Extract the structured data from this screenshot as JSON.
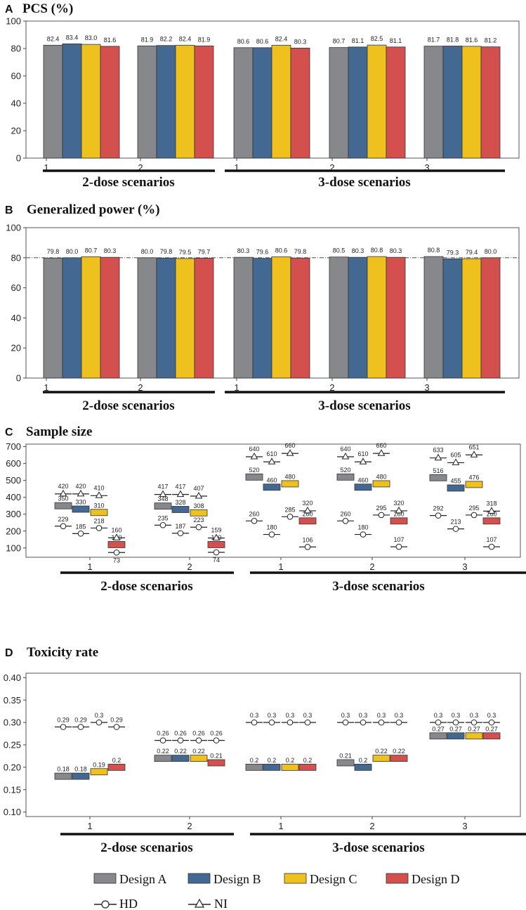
{
  "colors": {
    "A": "#87888c",
    "B": "#436891",
    "C": "#eec11f",
    "D": "#d4504e",
    "border": "#333333"
  },
  "legend": {
    "items": [
      {
        "key": "A",
        "label": "Design A"
      },
      {
        "key": "B",
        "label": "Design B"
      },
      {
        "key": "C",
        "label": "Design C"
      },
      {
        "key": "D",
        "label": "Design D"
      }
    ],
    "hd_label": "HD",
    "ni_label": "NI"
  },
  "chart_data": [
    {
      "panel": "A",
      "title": "PCS (%)",
      "type": "bar",
      "ylim": [
        0,
        100
      ],
      "yticks": [
        "0",
        "20",
        "40",
        "60",
        "80",
        "100"
      ],
      "categories": [
        "1",
        "2",
        "1",
        "2",
        "3"
      ],
      "groups": [
        "2-dose scenarios",
        "3-dose scenarios"
      ],
      "series": [
        {
          "name": "Design A",
          "values": [
            82.4,
            81.9,
            80.6,
            80.7,
            81.7
          ]
        },
        {
          "name": "Design B",
          "values": [
            83.4,
            82.2,
            80.6,
            81.1,
            81.8
          ]
        },
        {
          "name": "Design C",
          "values": [
            83.0,
            82.4,
            82.4,
            82.5,
            81.6
          ]
        },
        {
          "name": "Design D",
          "values": [
            81.6,
            81.9,
            80.3,
            81.1,
            81.2
          ]
        }
      ],
      "labels": [
        [
          "82.4",
          "81.9",
          "80.6",
          "80.7",
          "81.7"
        ],
        [
          "83.4",
          "82.2",
          "80.6",
          "81.1",
          "81.8"
        ],
        [
          "83.0",
          "82.4",
          "82.4",
          "82.5",
          "81.6"
        ],
        [
          "81.6",
          "81.9",
          "80.3",
          "81.1",
          "81.2"
        ]
      ]
    },
    {
      "panel": "B",
      "title": "Generalized power (%)",
      "type": "bar",
      "ylim": [
        0,
        100
      ],
      "yticks": [
        "0",
        "20",
        "40",
        "60",
        "80",
        "100"
      ],
      "refline": 80,
      "categories": [
        "1",
        "2",
        "1",
        "2",
        "3"
      ],
      "groups": [
        "2-dose scenarios",
        "3-dose scenarios"
      ],
      "series": [
        {
          "name": "Design A",
          "values": [
            79.8,
            80.0,
            80.3,
            80.5,
            80.8
          ]
        },
        {
          "name": "Design B",
          "values": [
            80.0,
            79.8,
            79.6,
            80.3,
            79.3
          ]
        },
        {
          "name": "Design C",
          "values": [
            80.7,
            79.5,
            80.6,
            80.8,
            79.4
          ]
        },
        {
          "name": "Design D",
          "values": [
            80.3,
            79.7,
            79.8,
            80.3,
            80.0
          ]
        }
      ],
      "labels": [
        [
          "79.8",
          "80.0",
          "80.3",
          "80.5",
          "80.8"
        ],
        [
          "80.0",
          "79.8",
          "79.6",
          "80.3",
          "79.3"
        ],
        [
          "80.7",
          "79.5",
          "80.6",
          "80.8",
          "79.4"
        ],
        [
          "80.3",
          "79.7",
          "79.8",
          "80.3",
          "80.0"
        ]
      ]
    },
    {
      "panel": "C",
      "title": "Sample size",
      "type": "marker",
      "ylim": [
        45,
        715
      ],
      "yticks": [
        "100",
        "200",
        "300",
        "400",
        "500",
        "600",
        "700"
      ],
      "categories": [
        "1",
        "2",
        "1",
        "2",
        "3"
      ],
      "groups": [
        "2-dose scenarios",
        "3-dose scenarios"
      ],
      "series": [
        {
          "name": "Design A",
          "values": [
            350,
            348,
            520,
            520,
            516
          ]
        },
        {
          "name": "Design B",
          "values": [
            330,
            328,
            460,
            460,
            455
          ]
        },
        {
          "name": "Design C",
          "values": [
            310,
            308,
            480,
            480,
            476
          ]
        },
        {
          "name": "Design D",
          "values": [
            120,
            120,
            260,
            260,
            260
          ]
        }
      ],
      "hd": [
        [
          229,
          185,
          218,
          73
        ],
        [
          235,
          187,
          223,
          74
        ],
        [
          260,
          180,
          285,
          106
        ],
        [
          260,
          180,
          295,
          107
        ],
        [
          292,
          213,
          295,
          107
        ]
      ],
      "ni": [
        [
          420,
          420,
          410,
          160
        ],
        [
          417,
          417,
          407,
          159
        ],
        [
          640,
          610,
          660,
          320
        ],
        [
          640,
          610,
          660,
          320
        ],
        [
          633,
          605,
          651,
          318
        ]
      ],
      "hd_labels": [
        [
          "229",
          "185",
          "218",
          "73"
        ],
        [
          "235",
          "187",
          "223",
          "74"
        ],
        [
          "260",
          "180",
          "285",
          "106"
        ],
        [
          "260",
          "180",
          "295",
          "107"
        ],
        [
          "292",
          "213",
          "295",
          "107"
        ]
      ],
      "ni_labels": [
        [
          "420",
          "420",
          "410",
          "160"
        ],
        [
          "417",
          "417",
          "407",
          "159"
        ],
        [
          "640",
          "610",
          "660",
          "320"
        ],
        [
          "640",
          "610",
          "660",
          "320"
        ],
        [
          "633",
          "605",
          "651",
          "318"
        ]
      ],
      "labels": [
        [
          "350",
          "348",
          "520",
          "520",
          "516"
        ],
        [
          "330",
          "328",
          "460",
          "460",
          "455"
        ],
        [
          "310",
          "308",
          "480",
          "480",
          "476"
        ],
        [
          "120",
          "120",
          "260",
          "260",
          "260"
        ]
      ]
    },
    {
      "panel": "D",
      "title": "Toxicity rate",
      "type": "marker",
      "ylim": [
        0.09,
        0.41
      ],
      "yticks": [
        "0.10",
        "0.15",
        "0.20",
        "0.25",
        "0.30",
        "0.35",
        "0.40"
      ],
      "categories": [
        "1",
        "2",
        "1",
        "2",
        "3"
      ],
      "groups": [
        "2-dose scenarios",
        "3-dose scenarios"
      ],
      "series": [
        {
          "name": "Design A",
          "values": [
            0.18,
            0.22,
            0.2,
            0.21,
            0.27
          ]
        },
        {
          "name": "Design B",
          "values": [
            0.18,
            0.22,
            0.2,
            0.2,
            0.27
          ]
        },
        {
          "name": "Design C",
          "values": [
            0.19,
            0.22,
            0.2,
            0.22,
            0.27
          ]
        },
        {
          "name": "Design D",
          "values": [
            0.2,
            0.21,
            0.2,
            0.22,
            0.27
          ]
        }
      ],
      "hd": [
        [
          0.29,
          0.29,
          0.3,
          0.29
        ],
        [
          0.26,
          0.26,
          0.26,
          0.26
        ],
        [
          0.3,
          0.3,
          0.3,
          0.3
        ],
        [
          0.3,
          0.3,
          0.3,
          0.3
        ],
        [
          0.3,
          0.3,
          0.3,
          0.3
        ]
      ],
      "hd_labels": [
        [
          "0.29",
          "0.29",
          "0.3",
          "0.29"
        ],
        [
          "0.26",
          "0.26",
          "0.26",
          "0.26"
        ],
        [
          "0.3",
          "0.3",
          "0.3",
          "0.3"
        ],
        [
          "0.3",
          "0.3",
          "0.3",
          "0.3"
        ],
        [
          "0.3",
          "0.3",
          "0.3",
          "0.3"
        ]
      ],
      "labels": [
        [
          "0.18",
          "0.22",
          "0.2",
          "0.21",
          "0.27"
        ],
        [
          "0.18",
          "0.22",
          "0.2",
          "0.2",
          "0.27"
        ],
        [
          "0.19",
          "0.22",
          "0.2",
          "0.22",
          "0.27"
        ],
        [
          "0.2",
          "0.21",
          "0.2",
          "0.22",
          "0.27"
        ]
      ]
    }
  ]
}
